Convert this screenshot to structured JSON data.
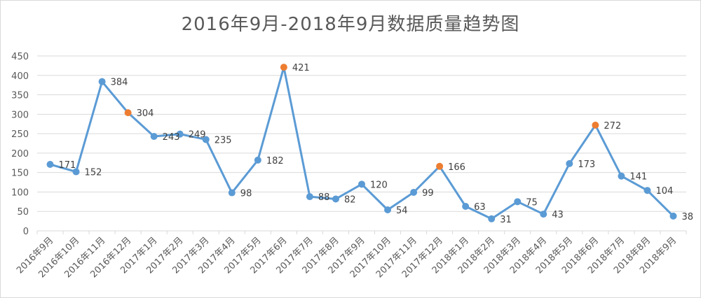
{
  "chart_data": {
    "type": "line",
    "title": "2016年9月-2018年9月数据质量趋势图",
    "categories": [
      "2016年9月",
      "2016年10月",
      "2016年11月",
      "2016年12月",
      "2017年1月",
      "2017年2月",
      "2017年3月",
      "2017年4月",
      "2017年5月",
      "2017年6月",
      "2017年7月",
      "2017年8月",
      "2017年9月",
      "2017年10月",
      "2017年11月",
      "2017年12月",
      "2018年1月",
      "2018年2月",
      "2018年3月",
      "2018年4月",
      "2018年5月",
      "2018年6月",
      "2018年7月",
      "2018年8月",
      "2018年9月"
    ],
    "series": [
      {
        "values": [
          171,
          152,
          384,
          304,
          243,
          249,
          235,
          98,
          182,
          421,
          88,
          82,
          120,
          54,
          99,
          166,
          63,
          31,
          75,
          43,
          173,
          272,
          141,
          104,
          38
        ]
      }
    ],
    "highlighted_categories": [
      "2016年12月",
      "2017年6月",
      "2017年12月",
      "2018年6月"
    ],
    "ylim": [
      0,
      450
    ],
    "yticks": [
      0,
      50,
      100,
      150,
      200,
      250,
      300,
      350,
      400,
      450
    ],
    "grid": true,
    "legend": "none",
    "colors": {
      "line": "#5b9bd5",
      "marker": "#5b9bd5",
      "highlight": "#ed7d31",
      "grid": "#d9d9d9",
      "text": "#595959"
    }
  }
}
